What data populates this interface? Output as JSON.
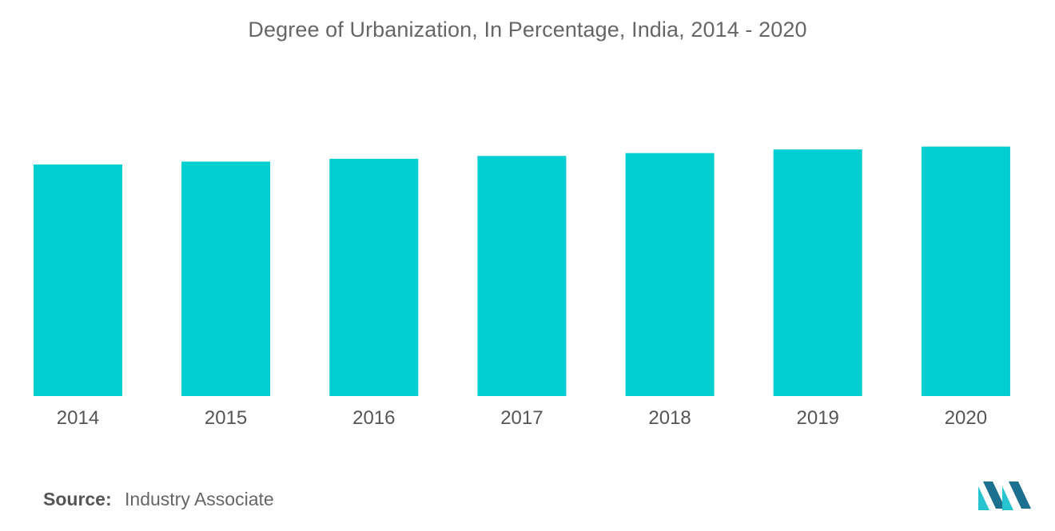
{
  "chart_data": {
    "type": "bar",
    "title": "Degree of Urbanization, In Percentage, India, 2014 - 2020",
    "categories": [
      "2014",
      "2015",
      "2016",
      "2017",
      "2018",
      "2019",
      "2020"
    ],
    "values": [
      32.4,
      32.8,
      33.2,
      33.6,
      34.0,
      34.5,
      34.9
    ],
    "ylim": [
      0,
      40
    ],
    "grid": false,
    "bar_color": "#00CED1"
  },
  "source": {
    "label": "Source:",
    "text": "Industry Associate"
  },
  "logo": {
    "icon": "mordor-intelligence-logo",
    "color_dark": "#1b6f8f",
    "color_light": "#27c3cf"
  }
}
